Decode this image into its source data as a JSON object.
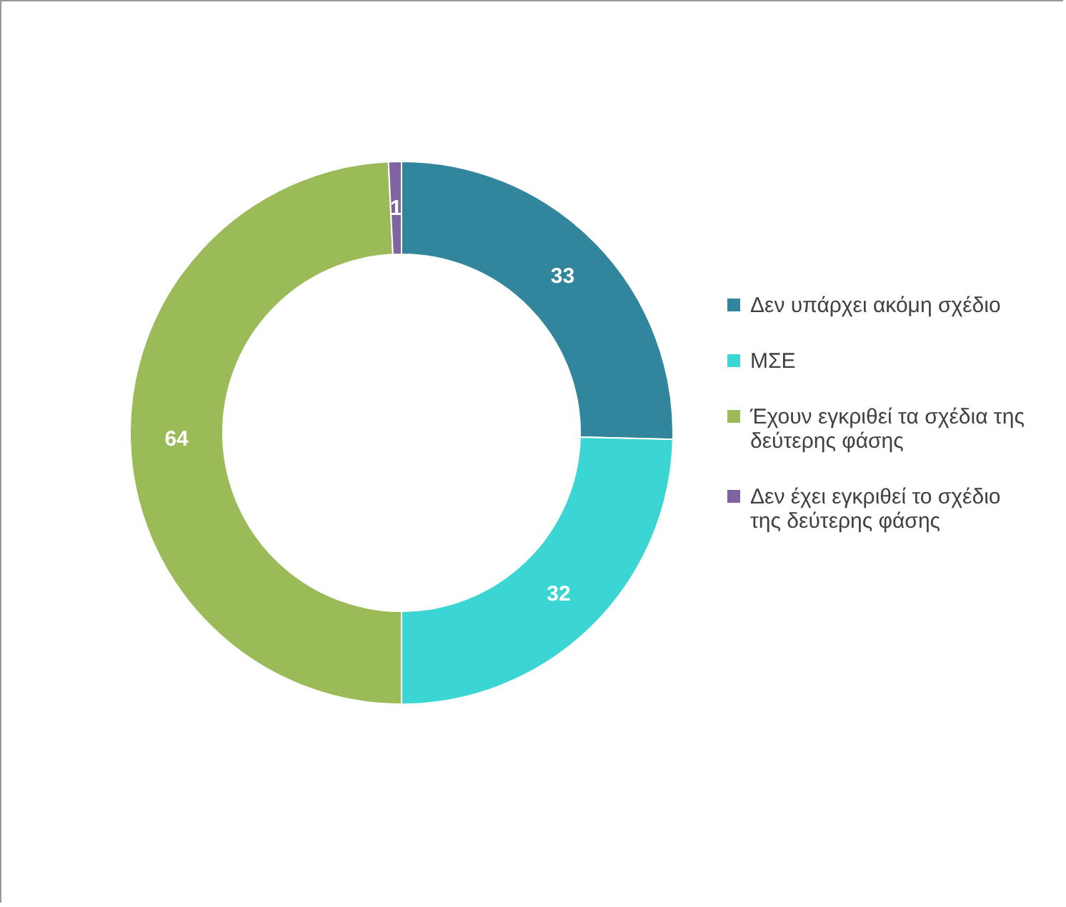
{
  "chart_data": {
    "type": "donut",
    "categories": [
      "Δεν υπάρχει ακόμη σχέδιο",
      "ΜΣΕ",
      "Έχουν εγκριθεί τα σχέδια της δεύτερης φάσης",
      "Δεν έχει εγκριθεί το σχέδιο της δεύτερης φάσης"
    ],
    "values": [
      33,
      32,
      64,
      1
    ],
    "colors": [
      "#31859c",
      "#3bd5d3",
      "#9bbb59",
      "#8064a2"
    ],
    "data_labels": true,
    "legend": "right"
  }
}
